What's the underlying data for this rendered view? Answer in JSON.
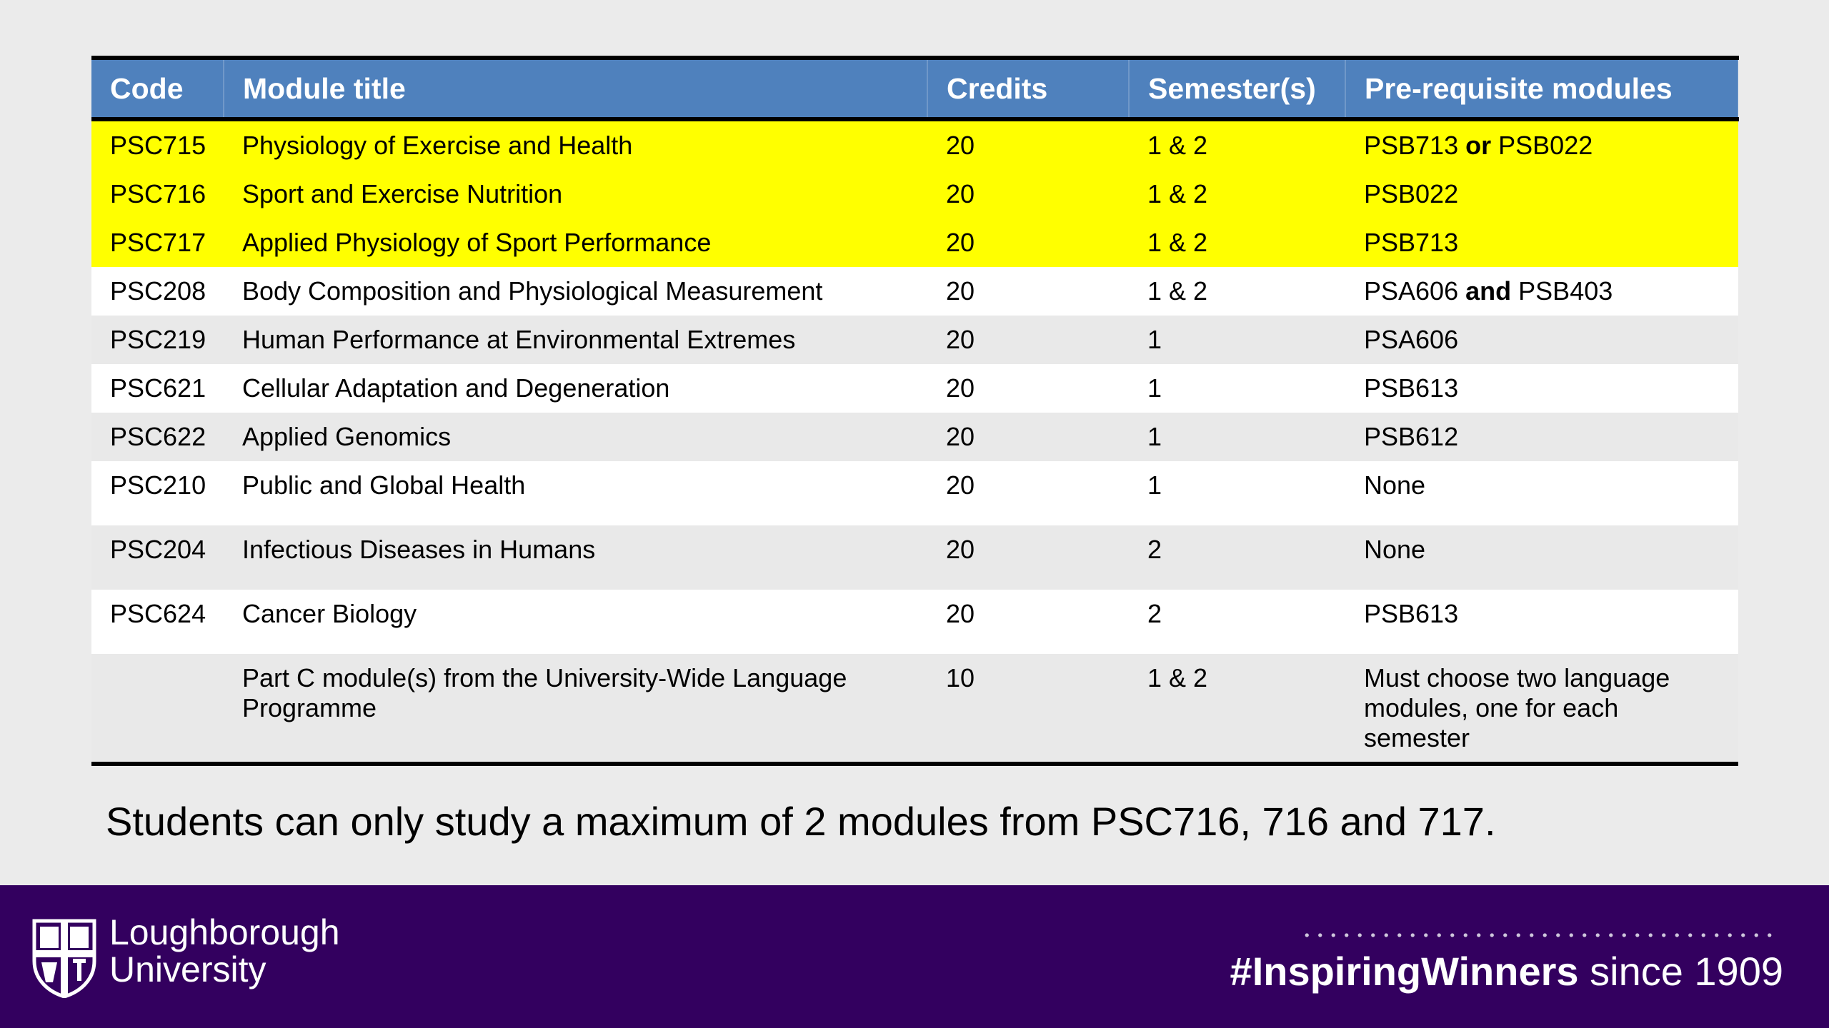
{
  "table": {
    "headers": [
      "Code",
      "Module title",
      "Credits",
      "Semester(s)",
      "Pre-requisite modules"
    ],
    "rows": [
      {
        "code": "PSC715",
        "title": "Physiology of Exercise and Health",
        "credits": "20",
        "semester": "1 & 2",
        "prereq_a": "PSB713",
        "prereq_join": "or",
        "prereq_b": "PSB022"
      },
      {
        "code": "PSC716",
        "title": "Sport and Exercise Nutrition",
        "credits": "20",
        "semester": "1 & 2",
        "prereq": "PSB022"
      },
      {
        "code": "PSC717",
        "title": "Applied Physiology of Sport Performance",
        "credits": "20",
        "semester": "1 & 2",
        "prereq": "PSB713"
      },
      {
        "code": "PSC208",
        "title": "Body Composition and Physiological Measurement",
        "credits": "20",
        "semester": "1 & 2",
        "prereq_a": "PSA606",
        "prereq_join": "and",
        "prereq_b": "PSB403"
      },
      {
        "code": "PSC219",
        "title": "Human Performance at Environmental Extremes",
        "credits": "20",
        "semester": "1",
        "prereq": "PSA606"
      },
      {
        "code": "PSC621",
        "title": "Cellular Adaptation and Degeneration",
        "credits": "20",
        "semester": "1",
        "prereq": "PSB613"
      },
      {
        "code": "PSC622",
        "title": "Applied Genomics",
        "credits": "20",
        "semester": "1",
        "prereq": "PSB612"
      },
      {
        "code": "PSC210",
        "title": "Public and Global Health",
        "credits": "20",
        "semester": "1",
        "prereq": "None"
      },
      {
        "code": "PSC204",
        "title": "Infectious Diseases in Humans",
        "credits": "20",
        "semester": "2",
        "prereq": "None"
      },
      {
        "code": "PSC624",
        "title": "Cancer Biology",
        "credits": "20",
        "semester": "2",
        "prereq": "PSB613"
      },
      {
        "code": "",
        "title": "Part C module(s) from the University-Wide Language Programme",
        "credits": "10",
        "semester": "1 & 2",
        "prereq": "Must choose two language modules, one for each semester"
      }
    ]
  },
  "note": "Students can only study a maximum of 2 modules from PSC716, 716 and 717.",
  "footer": {
    "logo_line1": "Loughborough",
    "logo_line2": "University",
    "hashtag": "#InspiringWinners",
    "since": " since 1909"
  },
  "colors": {
    "header_bg": "#4f81bd",
    "highlight": "#ffff00",
    "footer_bg": "#33005f"
  },
  "icons": [
    "university-crest-icon"
  ]
}
